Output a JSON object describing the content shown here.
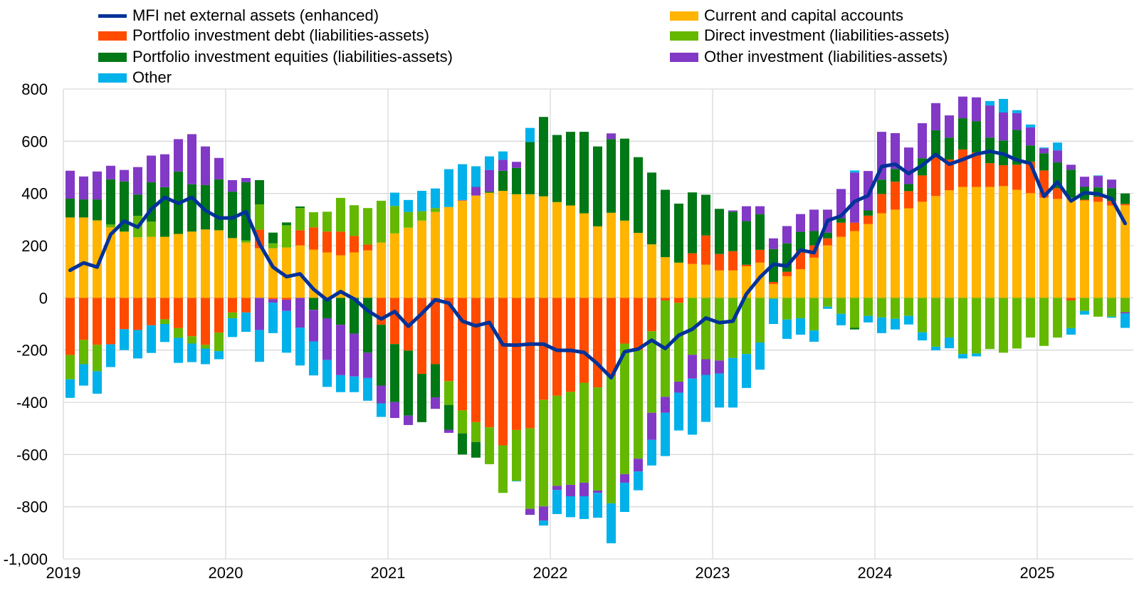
{
  "chart_data": {
    "type": "bar",
    "subtype": "stacked bar with line overlay",
    "title": "",
    "xlabel": "",
    "ylabel": "",
    "ylim": [
      -1000,
      800
    ],
    "yticks": [
      "800",
      "600",
      "400",
      "200",
      "0",
      "-200",
      "-400",
      "-600",
      "-800",
      "-1,000"
    ],
    "ytick_values": [
      800,
      600,
      400,
      200,
      0,
      -200,
      -400,
      -600,
      -800,
      -1000
    ],
    "xticks": [
      "2019",
      "2020",
      "2021",
      "2022",
      "2023",
      "2024",
      "2025"
    ],
    "start": "2019-01",
    "frequency": "monthly",
    "n_periods": 79,
    "grid": true,
    "legend_placement": "top",
    "colors": {
      "line": "#003299",
      "current": "#FFB400",
      "debt": "#FF4B00",
      "direct": "#65B800",
      "equity": "#007816",
      "otherinv": "#8139C6",
      "other": "#00B1EA"
    },
    "line": {
      "key": "line",
      "name": "MFI net external assets (enhanced)",
      "values": [
        106,
        134,
        118,
        243,
        294,
        271,
        340,
        385,
        362,
        385,
        335,
        306,
        306,
        330,
        207,
        118,
        81,
        92,
        33,
        -8,
        24,
        -4,
        -49,
        -81,
        -52,
        -109,
        -60,
        -7,
        -20,
        -89,
        -107,
        -94,
        -180,
        -181,
        -177,
        -177,
        -201,
        -201,
        -209,
        -253,
        -306,
        -206,
        -196,
        -162,
        -194,
        -143,
        -120,
        -77,
        -95,
        -89,
        15,
        79,
        129,
        122,
        183,
        173,
        296,
        314,
        369,
        392,
        503,
        512,
        476,
        508,
        549,
        512,
        530,
        551,
        561,
        551,
        528,
        515,
        389,
        444,
        371,
        403,
        398,
        380,
        285
      ]
    },
    "series": [
      {
        "key": "current",
        "name": "Current and capital accounts",
        "values": [
          308,
          308,
          297,
          270,
          254,
          232,
          234,
          234,
          245,
          254,
          262,
          259,
          229,
          212,
          190,
          190,
          193,
          201,
          185,
          174,
          163,
          174,
          182,
          212,
          247,
          269,
          296,
          329,
          348,
          373,
          392,
          403,
          410,
          397,
          397,
          389,
          367,
          354,
          324,
          274,
          326,
          296,
          249,
          205,
          156,
          135,
          130,
          127,
          105,
          105,
          121,
          135,
          53,
          83,
          110,
          154,
          201,
          234,
          256,
          283,
          324,
          338,
          343,
          368,
          390,
          412,
          425,
          425,
          425,
          428,
          414,
          401,
          384,
          379,
          384,
          373,
          368,
          354,
          355
        ]
      },
      {
        "key": "debt",
        "name": "Portfolio investment debt (liabilities-assets)",
        "values": [
          -219,
          -161,
          -180,
          -178,
          -120,
          -123,
          -105,
          -82,
          -116,
          -147,
          -180,
          -133,
          -56,
          -56,
          71,
          -5,
          -7,
          58,
          85,
          80,
          91,
          63,
          22,
          -103,
          -177,
          -202,
          -291,
          -254,
          -319,
          -431,
          -476,
          -496,
          -565,
          -506,
          -500,
          -391,
          -375,
          -360,
          -325,
          -343,
          -300,
          -175,
          -200,
          -128,
          -10,
          -19,
          41,
          112,
          63,
          74,
          6,
          49,
          8,
          17,
          69,
          47,
          27,
          54,
          32,
          32,
          74,
          107,
          66,
          101,
          148,
          118,
          143,
          132,
          91,
          80,
          96,
          120,
          104,
          41,
          -10,
          3,
          19,
          17,
          5
        ]
      },
      {
        "key": "direct",
        "name": "Direct investment (liabilities-assets)",
        "values": [
          -93,
          -93,
          -101,
          11,
          0,
          82,
          58,
          -18,
          -37,
          -28,
          -14,
          -71,
          -22,
          8,
          97,
          19,
          85,
          85,
          58,
          76,
          129,
          118,
          140,
          160,
          105,
          60,
          36,
          15,
          -91,
          -88,
          -76,
          -141,
          -182,
          -195,
          -308,
          -408,
          -345,
          -356,
          -383,
          -395,
          -487,
          -500,
          -416,
          -312,
          -369,
          -302,
          -218,
          -235,
          -240,
          -230,
          -215,
          -171,
          -4,
          -83,
          -78,
          -125,
          -34,
          -61,
          -114,
          -69,
          -75,
          -80,
          -69,
          -132,
          -187,
          -152,
          -215,
          -213,
          -196,
          -210,
          -194,
          -152,
          -184,
          -152,
          -106,
          -50,
          -72,
          -72,
          -55
        ]
      },
      {
        "key": "equity",
        "name": "Portfolio investment equities (liabilities-assets)",
        "values": [
          72,
          69,
          80,
          173,
          192,
          82,
          151,
          190,
          239,
          181,
          170,
          195,
          178,
          223,
          93,
          41,
          11,
          6,
          -46,
          -78,
          -103,
          -137,
          -210,
          -233,
          -222,
          -249,
          -185,
          -127,
          -95,
          -81,
          -60,
          5,
          77,
          101,
          200,
          304,
          257,
          282,
          312,
          306,
          282,
          314,
          290,
          275,
          258,
          226,
          233,
          156,
          173,
          151,
          167,
          137,
          126,
          109,
          74,
          55,
          22,
          17,
          -7,
          20,
          55,
          49,
          27,
          66,
          104,
          84,
          120,
          120,
          98,
          95,
          133,
          63,
          66,
          99,
          107,
          49,
          36,
          49,
          40
        ]
      },
      {
        "key": "otherinv",
        "name": "Other investment (liabilities-assets)",
        "values": [
          107,
          88,
          107,
          52,
          44,
          105,
          102,
          126,
          124,
          192,
          148,
          82,
          44,
          16,
          -123,
          -13,
          -43,
          -114,
          -121,
          -160,
          -193,
          -164,
          -97,
          -68,
          -61,
          -36,
          0,
          -44,
          -12,
          2,
          33,
          82,
          42,
          23,
          -23,
          -54,
          -16,
          -44,
          -52,
          -9,
          22,
          -33,
          -49,
          -104,
          -61,
          -42,
          -91,
          -60,
          -50,
          5,
          57,
          30,
          41,
          66,
          68,
          82,
          88,
          112,
          192,
          151,
          183,
          137,
          140,
          134,
          104,
          85,
          83,
          91,
          123,
          107,
          65,
          69,
          19,
          46,
          19,
          39,
          44,
          33,
          -5
        ]
      },
      {
        "key": "other",
        "name": "Other",
        "values": [
          -71,
          -82,
          -86,
          -87,
          -80,
          -109,
          -106,
          -69,
          -96,
          -71,
          -60,
          -31,
          -72,
          -74,
          -122,
          -117,
          -160,
          -145,
          -130,
          -103,
          -65,
          -60,
          -87,
          -52,
          51,
          46,
          78,
          75,
          145,
          137,
          79,
          52,
          32,
          -2,
          54,
          -19,
          -92,
          -80,
          -87,
          -95,
          -153,
          -112,
          -72,
          -98,
          -166,
          -145,
          -215,
          -180,
          -130,
          -190,
          -130,
          -104,
          -96,
          -74,
          -63,
          -43,
          -8,
          -44,
          8,
          -25,
          -60,
          -41,
          -33,
          -31,
          -14,
          -41,
          -17,
          -11,
          17,
          52,
          11,
          11,
          3,
          30,
          -25,
          -14,
          2,
          -4,
          -55
        ]
      }
    ],
    "legend": [
      "MFI net external assets (enhanced)",
      "Current and capital accounts",
      "Portfolio investment debt (liabilities-assets)",
      "Direct investment (liabilities-assets)",
      "Portfolio investment equities (liabilities-assets)",
      "Other investment (liabilities-assets)",
      "Other"
    ]
  }
}
